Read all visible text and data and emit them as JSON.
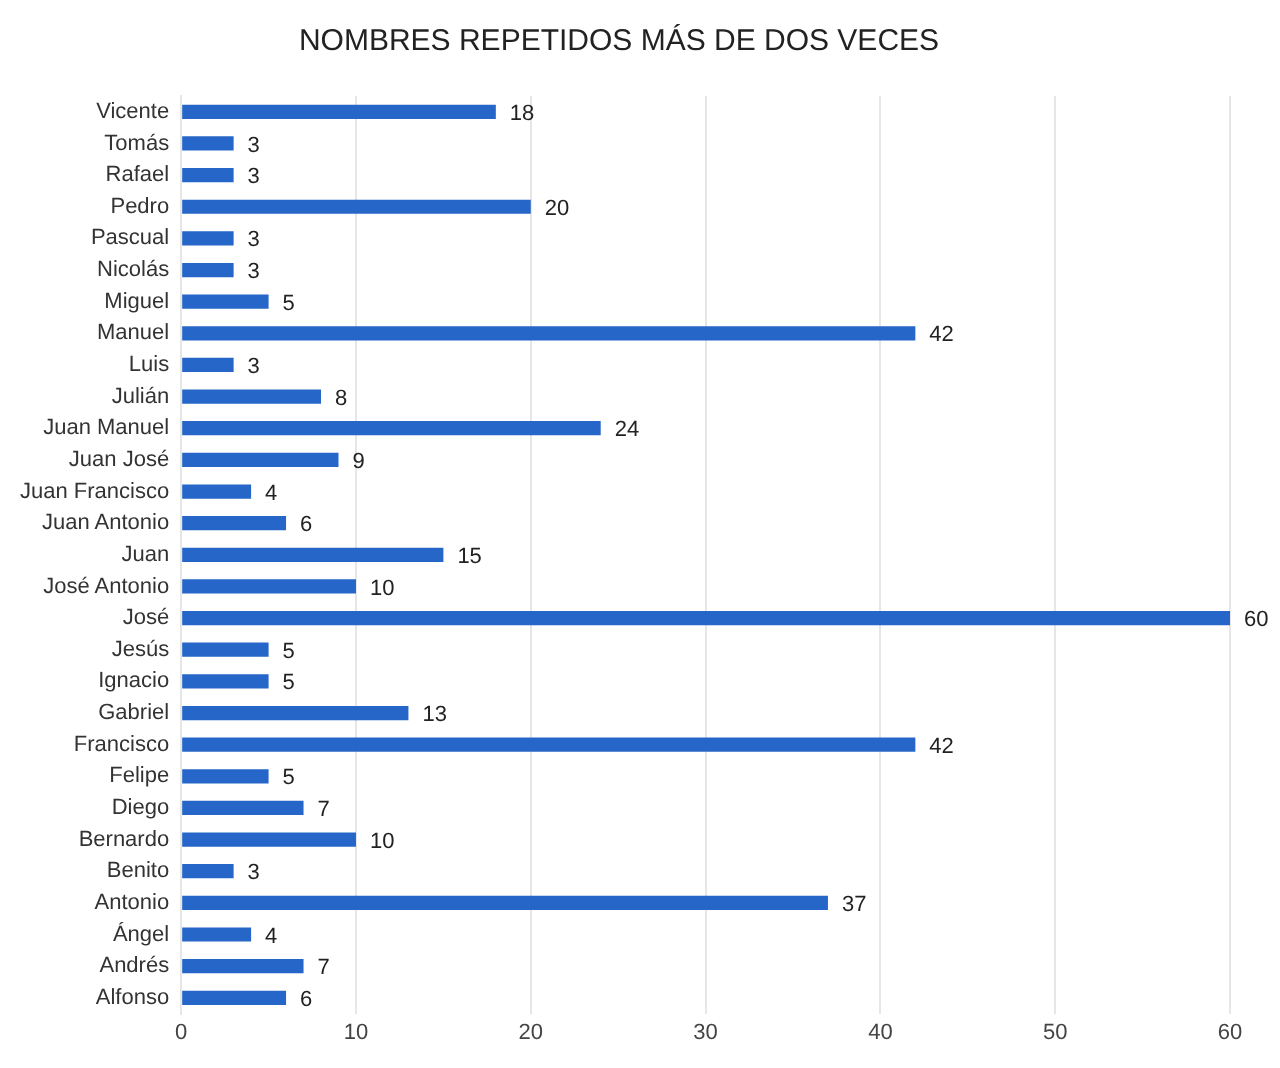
{
  "chart_data": {
    "type": "bar",
    "orientation": "horizontal",
    "title": "NOMBRES REPETIDOS MÁS DE DOS VECES",
    "categories": [
      "Vicente",
      "Tomás",
      "Rafael",
      "Pedro",
      "Pascual",
      "Nicolás",
      "Miguel",
      "Manuel",
      "Luis",
      "Julián",
      "Juan Manuel",
      "Juan José",
      "Juan Francisco",
      "Juan Antonio",
      "Juan",
      "José Antonio",
      "José",
      "Jesús",
      "Ignacio",
      "Gabriel",
      "Francisco",
      "Felipe",
      "Diego",
      "Bernardo",
      "Benito",
      "Antonio",
      "Ángel",
      "Andrés",
      "Alfonso"
    ],
    "values": [
      18,
      3,
      3,
      20,
      3,
      3,
      5,
      42,
      3,
      8,
      24,
      9,
      4,
      6,
      15,
      10,
      60,
      5,
      5,
      13,
      42,
      5,
      7,
      10,
      3,
      37,
      4,
      7,
      6
    ],
    "color": "#2566c8",
    "xlim": [
      0,
      60
    ],
    "xticks": [
      0,
      10,
      20,
      30,
      40,
      50,
      60
    ],
    "grid": "x",
    "data_labels": true
  }
}
